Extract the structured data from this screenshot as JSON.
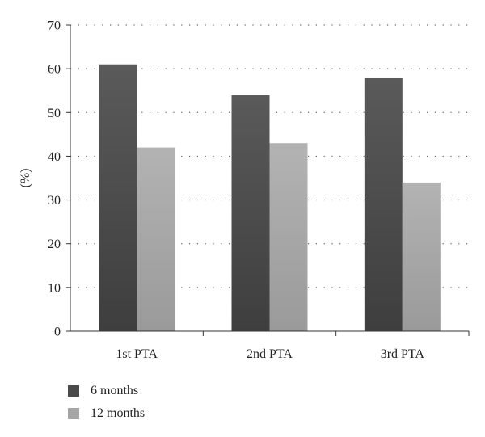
{
  "chart_data": {
    "type": "bar",
    "categories": [
      "1st PTA",
      "2nd PTA",
      "3rd PTA"
    ],
    "series": [
      {
        "name": "6 months",
        "values": [
          61,
          54,
          58
        ],
        "color": "#4a4a4a"
      },
      {
        "name": "12 months",
        "values": [
          42,
          43,
          34
        ],
        "color": "#a6a6a6"
      }
    ],
    "title": "",
    "xlabel": "",
    "ylabel": "(%)",
    "ylim": [
      0,
      70
    ],
    "yticks": [
      0,
      10,
      20,
      30,
      40,
      50,
      60,
      70
    ],
    "grid": "horizontal dotted",
    "legend_position": "bottom-left"
  }
}
